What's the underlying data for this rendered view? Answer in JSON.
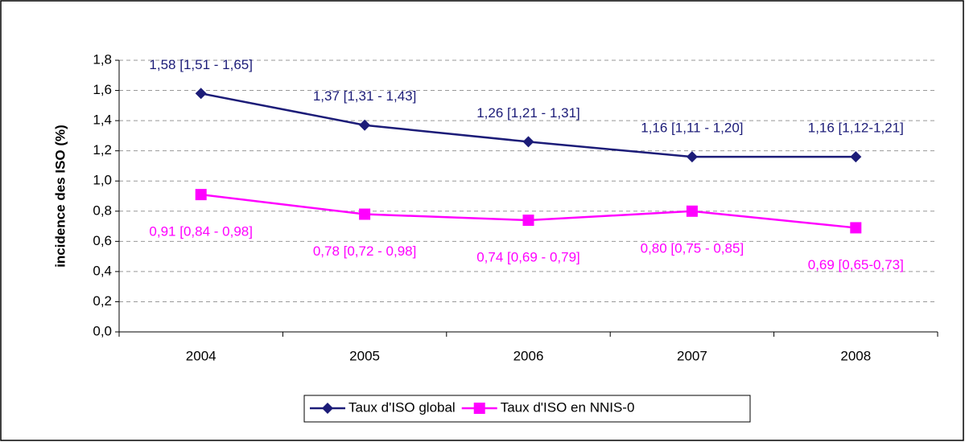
{
  "chart_data": {
    "type": "line",
    "y_label": "incidence des ISO (%)",
    "categories": [
      "2004",
      "2005",
      "2006",
      "2007",
      "2008"
    ],
    "series": [
      {
        "name": "Taux d'ISO global",
        "color": "#1c1c78",
        "marker": "diamond",
        "label_position": "above",
        "values": [
          1.58,
          1.37,
          1.26,
          1.16,
          1.16
        ],
        "value_labels": [
          "1,58 [1,51 - 1,65]",
          "1,37 [1,31 - 1,43]",
          "1,26 [1,21 - 1,31]",
          "1,16 [1,11 - 1,20]",
          "1,16 [1,12-1,21]"
        ]
      },
      {
        "name": "Taux d'ISO en NNIS-0",
        "color": "#ff00ff",
        "marker": "square",
        "label_position": "below",
        "values": [
          0.91,
          0.78,
          0.74,
          0.8,
          0.69
        ],
        "value_labels": [
          "0,91 [0,84 - 0,98]",
          "0,78 [0,72 - 0,98]",
          "0,74 [0,69 - 0,79]",
          "0,80 [0,75 - 0,85]",
          "0,69 [0,65-0,73]"
        ]
      }
    ],
    "ylim": [
      0,
      1.8
    ],
    "yticks": [
      {
        "value": 0,
        "label": "0,0"
      },
      {
        "value": 0.2,
        "label": "0,2"
      },
      {
        "value": 0.4,
        "label": "0,4"
      },
      {
        "value": 0.6,
        "label": "0,6"
      },
      {
        "value": 0.8,
        "label": "0,8"
      },
      {
        "value": 1.0,
        "label": "1,0"
      },
      {
        "value": 1.2,
        "label": "1,2"
      },
      {
        "value": 1.4,
        "label": "1,4"
      },
      {
        "value": 1.6,
        "label": "1,6"
      },
      {
        "value": 1.8,
        "label": "1,8"
      }
    ],
    "grid": true,
    "legend": "bottom"
  }
}
